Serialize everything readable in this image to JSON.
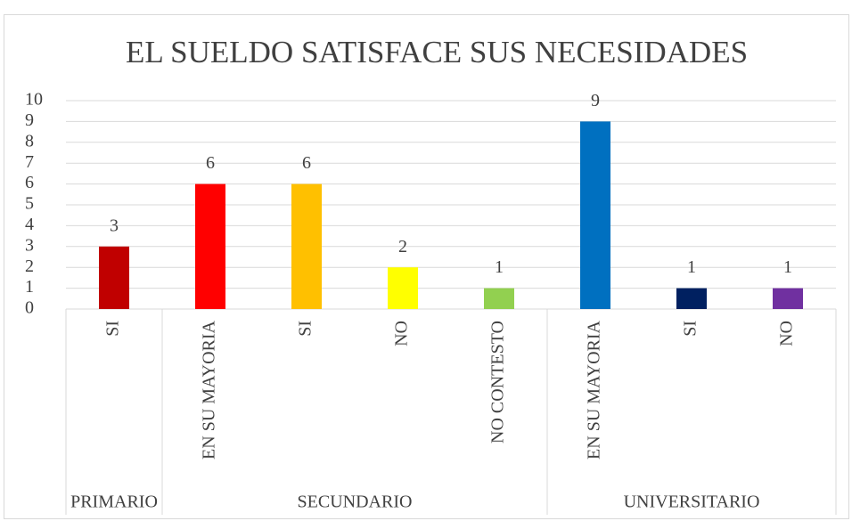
{
  "chart_data": {
    "type": "bar",
    "title": "EL SUELDO SATISFACE SUS NECESIDADES",
    "categories": [
      "SI",
      "EN SU MAYORIA",
      "SI",
      "NO",
      "NO CONTESTO",
      "EN SU MAYORIA",
      "SI",
      "NO"
    ],
    "groups": [
      "PRIMARIO",
      "SECUNDARIO",
      "SECUNDARIO",
      "SECUNDARIO",
      "SECUNDARIO",
      "UNIVERSITARIO",
      "UNIVERSITARIO",
      "UNIVERSITARIO"
    ],
    "values": [
      3,
      6,
      6,
      2,
      1,
      9,
      1,
      1
    ],
    "colors": [
      "#c00000",
      "#ff0000",
      "#ffc000",
      "#ffff00",
      "#92d050",
      "#0070c0",
      "#002060",
      "#7030a0"
    ],
    "ylim": [
      0,
      10
    ],
    "yticks": [
      0,
      1,
      2,
      3,
      4,
      5,
      6,
      7,
      8,
      9,
      10
    ],
    "grid": true,
    "data_labels": true
  }
}
